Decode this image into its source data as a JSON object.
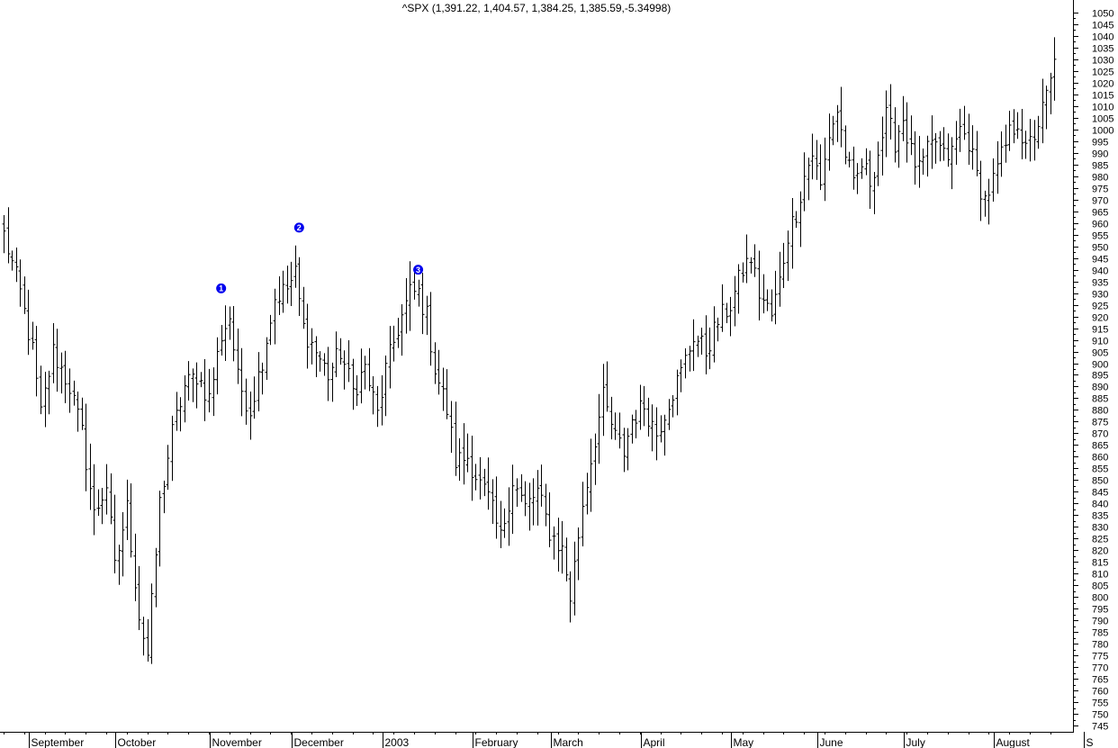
{
  "chart_data": {
    "type": "ohlc",
    "title": "^SPX (1,391.22, 1,404.57, 1,384.25, 1,385.59,-5.34998)",
    "xlabel": "",
    "ylabel": "",
    "ylim": [
      742,
      1055
    ],
    "y_ticks": [
      1050,
      1045,
      1040,
      1035,
      1030,
      1025,
      1020,
      1015,
      1010,
      1005,
      1000,
      995,
      990,
      985,
      980,
      975,
      970,
      965,
      960,
      955,
      950,
      945,
      940,
      935,
      930,
      925,
      920,
      915,
      910,
      905,
      900,
      895,
      890,
      885,
      880,
      875,
      870,
      865,
      860,
      855,
      850,
      845,
      840,
      835,
      830,
      825,
      820,
      815,
      810,
      805,
      800,
      795,
      790,
      785,
      780,
      775,
      770,
      765,
      760,
      755,
      750,
      745
    ],
    "x_tick_labels": [
      {
        "label": "September",
        "index": 8
      },
      {
        "label": "October",
        "index": 29
      },
      {
        "label": "November",
        "index": 52
      },
      {
        "label": "December",
        "index": 72
      },
      {
        "label": "2003",
        "index": 94
      },
      {
        "label": "February",
        "index": 116
      },
      {
        "label": "March",
        "index": 135
      },
      {
        "label": "April",
        "index": 157
      },
      {
        "label": "May",
        "index": 179
      },
      {
        "label": "June",
        "index": 200
      },
      {
        "label": "July",
        "index": 221
      },
      {
        "label": "August",
        "index": 243
      },
      {
        "label": "S",
        "index": 265
      }
    ],
    "markers": [
      {
        "label": "1",
        "index": 53,
        "value": 932
      },
      {
        "label": "2",
        "index": 72,
        "value": 958
      },
      {
        "label": "3",
        "index": 101,
        "value": 940
      }
    ],
    "marker_color": "#0000ee",
    "bar_color": "#000000",
    "series": [
      {
        "anchors": [
          [
            0,
            955
          ],
          [
            4,
            930
          ],
          [
            7,
            905
          ],
          [
            9,
            878
          ],
          [
            12,
            905
          ],
          [
            16,
            890
          ],
          [
            19,
            870
          ],
          [
            22,
            835
          ],
          [
            25,
            848
          ],
          [
            27,
            812
          ],
          [
            30,
            838
          ],
          [
            33,
            792
          ],
          [
            35,
            775
          ],
          [
            38,
            840
          ],
          [
            41,
            870
          ],
          [
            44,
            890
          ],
          [
            47,
            895
          ],
          [
            50,
            885
          ],
          [
            53,
            912
          ],
          [
            55,
            920
          ],
          [
            57,
            893
          ],
          [
            60,
            880
          ],
          [
            63,
            902
          ],
          [
            66,
            928
          ],
          [
            69,
            932
          ],
          [
            71,
            938
          ],
          [
            73,
            915
          ],
          [
            76,
            905
          ],
          [
            79,
            895
          ],
          [
            82,
            905
          ],
          [
            85,
            888
          ],
          [
            88,
            898
          ],
          [
            91,
            878
          ],
          [
            93,
            897
          ],
          [
            96,
            915
          ],
          [
            99,
            930
          ],
          [
            101,
            930
          ],
          [
            103,
            920
          ],
          [
            105,
            898
          ],
          [
            108,
            880
          ],
          [
            110,
            858
          ],
          [
            113,
            860
          ],
          [
            116,
            848
          ],
          [
            118,
            842
          ],
          [
            121,
            825
          ],
          [
            124,
            850
          ],
          [
            127,
            838
          ],
          [
            130,
            845
          ],
          [
            133,
            828
          ],
          [
            136,
            820
          ],
          [
            138,
            800
          ],
          [
            141,
            840
          ],
          [
            144,
            868
          ],
          [
            146,
            885
          ],
          [
            149,
            868
          ],
          [
            151,
            862
          ],
          [
            153,
            876
          ],
          [
            156,
            882
          ],
          [
            159,
            870
          ],
          [
            162,
            884
          ],
          [
            165,
            896
          ],
          [
            168,
            912
          ],
          [
            171,
            905
          ],
          [
            174,
            918
          ],
          [
            177,
            925
          ],
          [
            180,
            940
          ],
          [
            182,
            945
          ],
          [
            184,
            930
          ],
          [
            187,
            920
          ],
          [
            189,
            935
          ],
          [
            191,
            955
          ],
          [
            193,
            965
          ],
          [
            195,
            980
          ],
          [
            197,
            990
          ],
          [
            199,
            975
          ],
          [
            201,
            998
          ],
          [
            203,
            1008
          ],
          [
            205,
            990
          ],
          [
            207,
            975
          ],
          [
            209,
            985
          ],
          [
            211,
            978
          ],
          [
            213,
            990
          ],
          [
            215,
            1005
          ],
          [
            217,
            995
          ],
          [
            219,
            1005
          ],
          [
            221,
            990
          ],
          [
            223,
            982
          ],
          [
            225,
            990
          ],
          [
            227,
            995
          ],
          [
            229,
            988
          ],
          [
            231,
            990
          ],
          [
            233,
            1000
          ],
          [
            235,
            995
          ],
          [
            237,
            980
          ],
          [
            239,
            970
          ],
          [
            241,
            978
          ],
          [
            243,
            988
          ],
          [
            245,
            998
          ],
          [
            247,
            1004
          ],
          [
            249,
            990
          ],
          [
            251,
            998
          ],
          [
            253,
            1008
          ],
          [
            255,
            1020
          ],
          [
            256,
            1028
          ]
        ]
      }
    ]
  }
}
